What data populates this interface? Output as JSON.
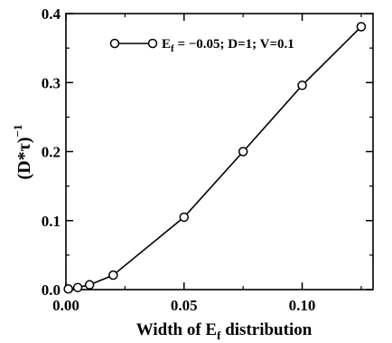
{
  "chart_data": {
    "type": "line",
    "title": "",
    "xlabel": "Width of E",
    "xlabel_sub": "f",
    "xlabel_tail": " distribution",
    "ylabel": "(D*τ)",
    "ylabel_sup": "−1",
    "xlim": [
      0,
      0.13
    ],
    "ylim": [
      0,
      0.4
    ],
    "xticks": [
      0.0,
      0.05,
      0.1
    ],
    "xtick_labels": [
      "0.00",
      "0.05",
      "0.10"
    ],
    "yticks": [
      0.0,
      0.1,
      0.2,
      0.3,
      0.4
    ],
    "ytick_labels": [
      "0.0",
      "0.1",
      "0.2",
      "0.3",
      "0.4"
    ],
    "grid": false,
    "legend_position": "top-left",
    "series": [
      {
        "legend_prefix": "E",
        "legend_sub": "f",
        "legend_suffix": " = −0.05; D=1; V=0.1",
        "marker": "open-circle",
        "color": "#000000",
        "x": [
          0.001,
          0.005,
          0.01,
          0.02,
          0.05,
          0.075,
          0.1,
          0.125
        ],
        "y": [
          0.001,
          0.003,
          0.007,
          0.021,
          0.105,
          0.2,
          0.296,
          0.381
        ]
      }
    ]
  }
}
